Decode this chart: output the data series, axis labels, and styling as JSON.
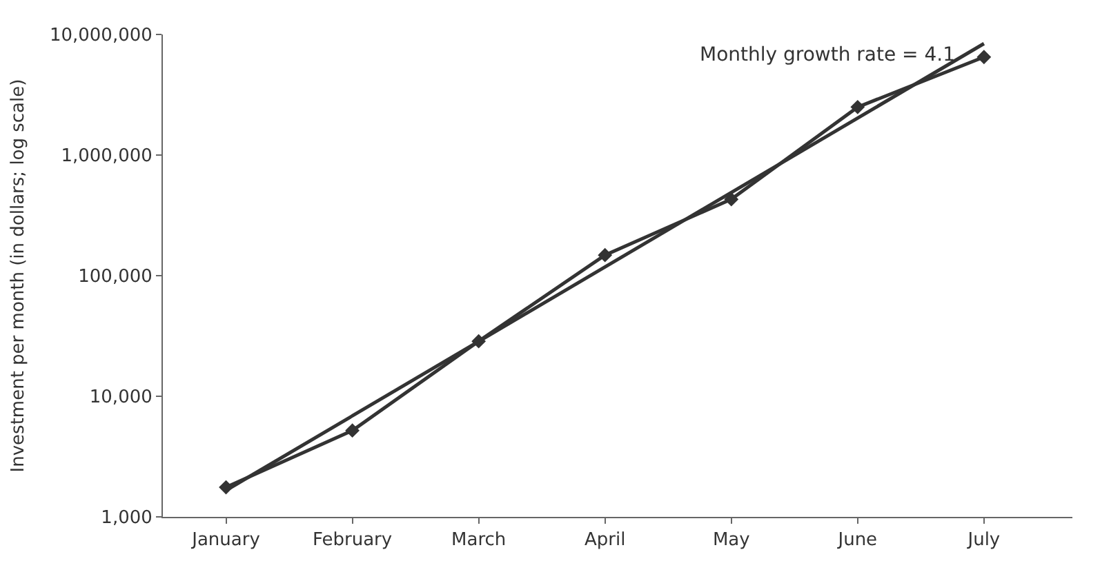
{
  "chart_data": {
    "type": "line",
    "ylabel": "Investment per month (in dollars; log scale)",
    "categories": [
      "January",
      "February",
      "March",
      "April",
      "May",
      "June",
      "July"
    ],
    "series": [
      {
        "color": "#333333",
        "values": [
          1760,
          5200,
          28600,
          148000,
          430000,
          2500000,
          6500000
        ],
        "marker": "diamond"
      },
      {
        "type": "line",
        "x": [
          "January",
          "July"
        ],
        "color": "#333333",
        "values": [
          1660,
          8400000
        ],
        "marker": "none"
      }
    ],
    "log": true,
    "ylim": [
      1000,
      10000000
    ],
    "yticks": [
      {
        "value": 1000,
        "label": "1,000"
      },
      {
        "value": 10000,
        "label": "10,000"
      },
      {
        "value": 100000,
        "label": "100,000"
      },
      {
        "value": 1000000,
        "label": "1,000,000"
      },
      {
        "value": 10000000,
        "label": "10,000,000"
      }
    ],
    "annotations": [
      "Monthly growth rate = 4.1"
    ],
    "line_style": "solid"
  }
}
